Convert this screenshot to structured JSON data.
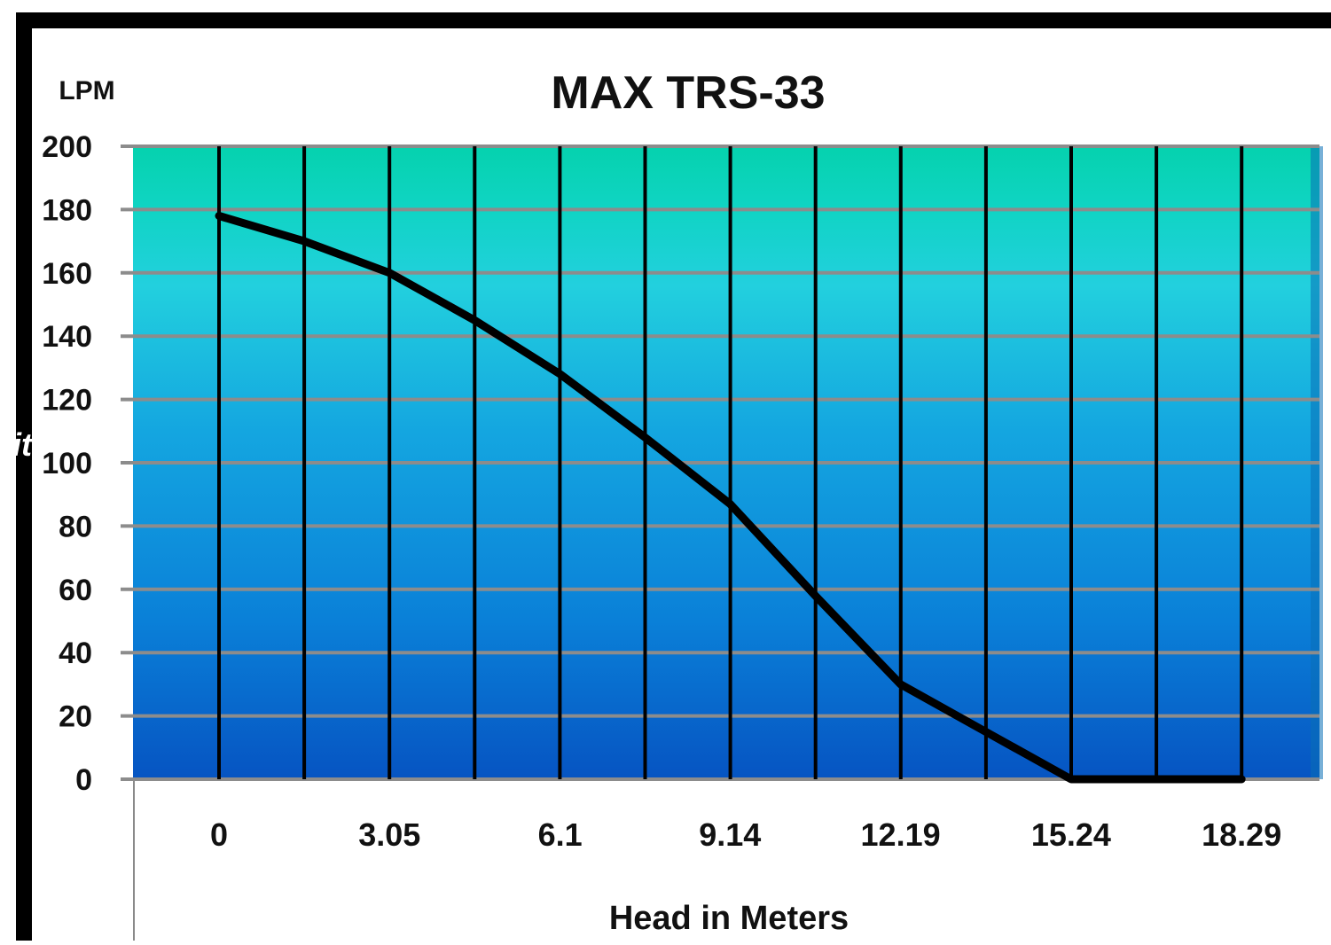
{
  "chart_data": {
    "type": "line",
    "title": "MAX TRS-33",
    "ylabel": "LPM",
    "xlabel": "Head in Meters",
    "ylim": [
      0,
      200
    ],
    "y_ticks": [
      "0",
      "20",
      "40",
      "60",
      "80",
      "100",
      "120",
      "140",
      "160",
      "180",
      "200"
    ],
    "x_ticks": [
      "0",
      "3.05",
      "6.1",
      "9.14",
      "12.19",
      "15.24",
      "18.29"
    ],
    "grid": true,
    "series": [
      {
        "x": [
          0,
          1.525,
          3.05,
          4.575,
          6.1,
          7.62,
          9.14,
          10.665,
          12.19,
          13.715,
          15.24,
          16.765,
          18.29
        ],
        "y": [
          178,
          170,
          160,
          145,
          128,
          108,
          87,
          58,
          30,
          15,
          0,
          0,
          0
        ]
      }
    ],
    "colors": {
      "background_top": "#08d0b0",
      "background_mid": "#20c8dc",
      "background_bottom": "#0a5cc8",
      "line": "#000000",
      "grid_horizontal": "#8a8a8a",
      "grid_vertical": "#000000"
    }
  },
  "stray_text": "it"
}
